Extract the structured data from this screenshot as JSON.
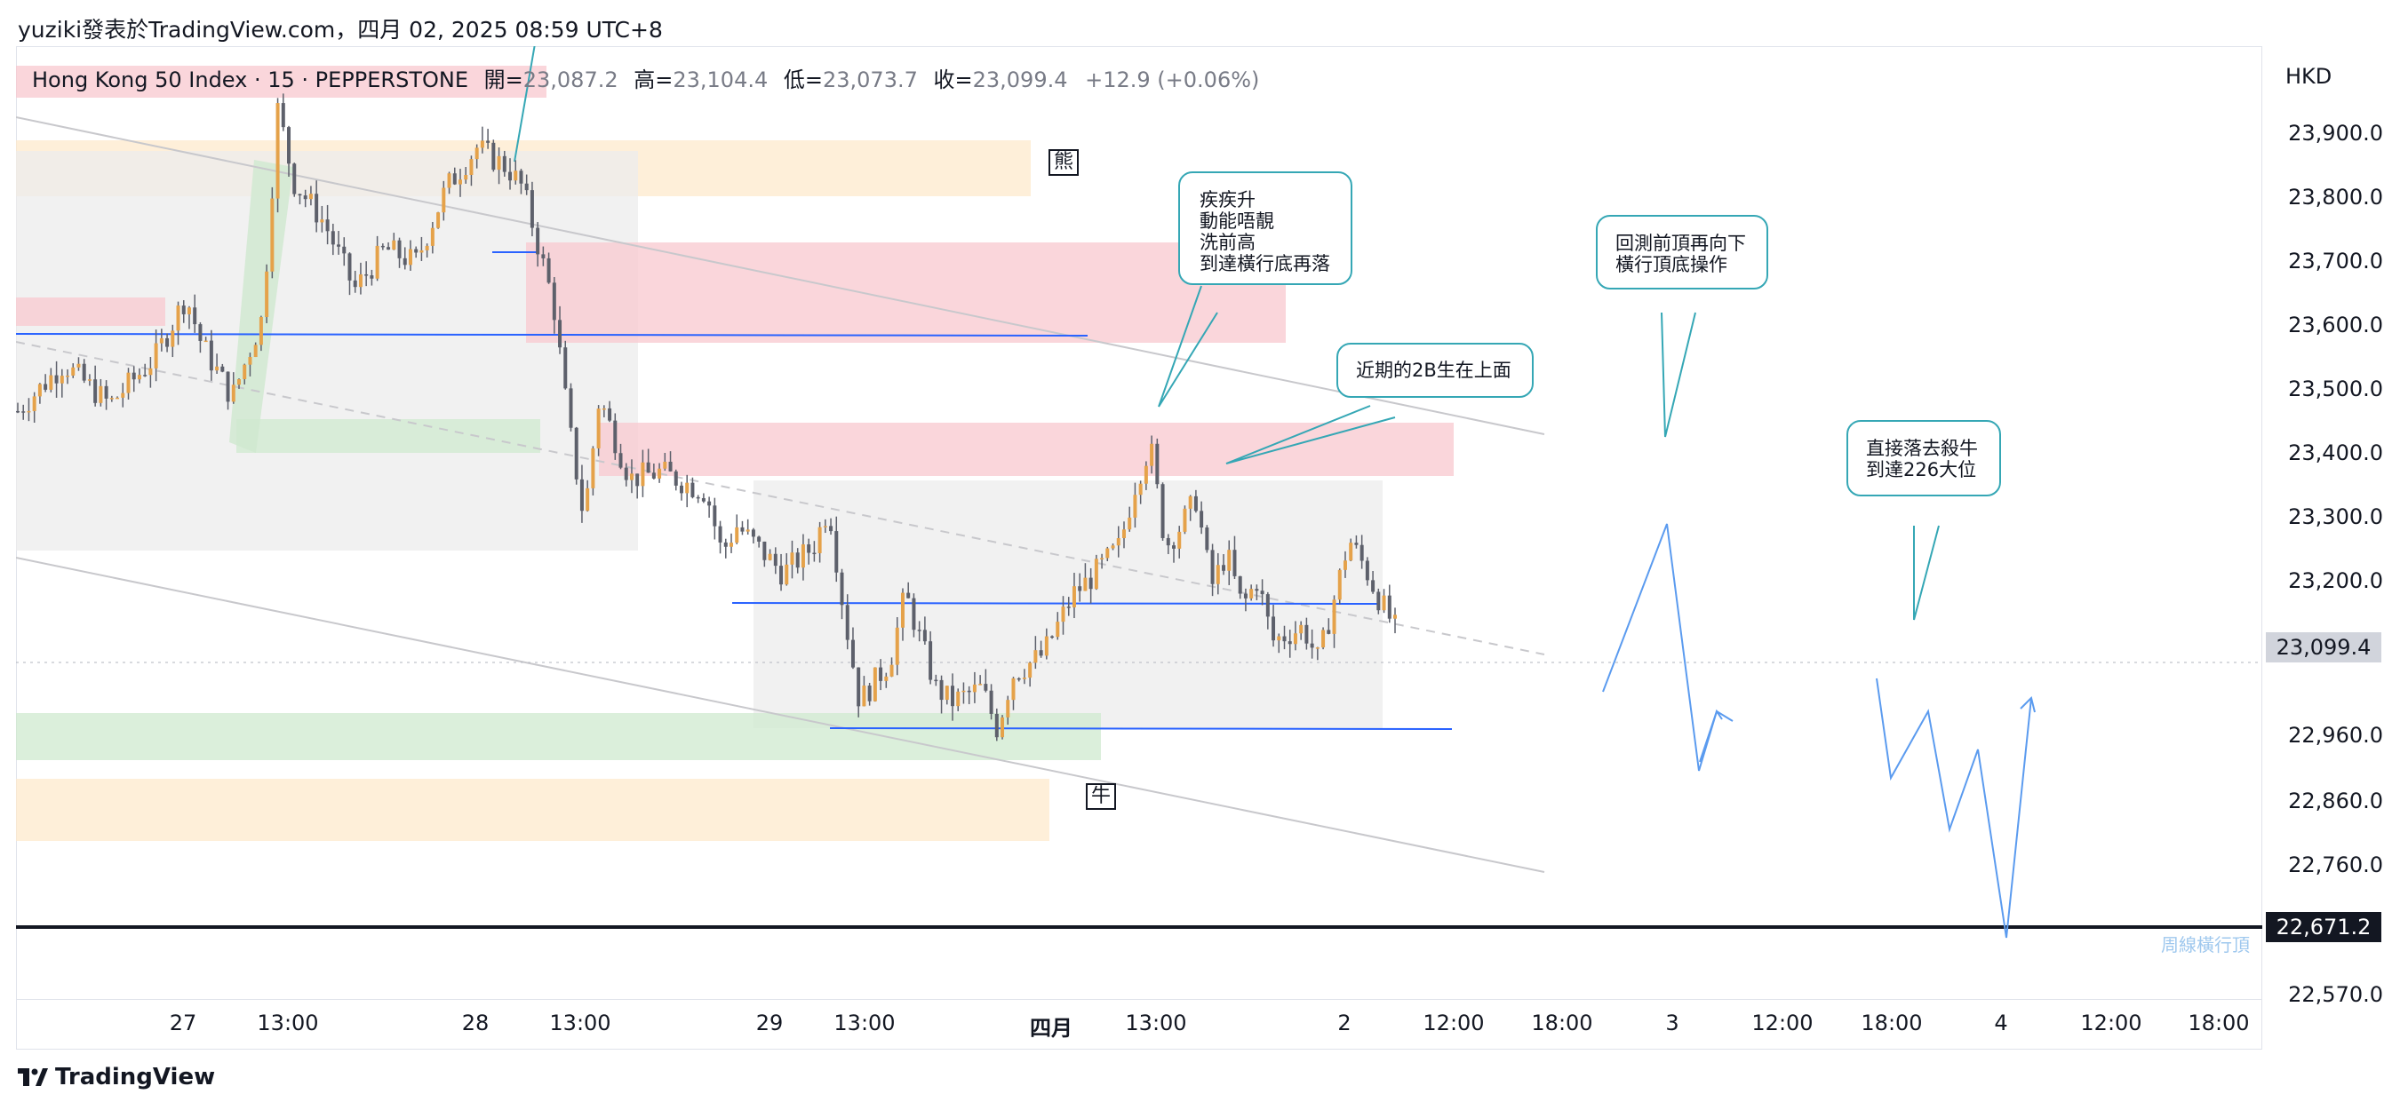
{
  "header": {
    "text": "yuziki發表於TradingView.com，四月 02, 2025 08:59 UTC+8"
  },
  "legend": {
    "symbol": "Hong Kong 50 Index · 15 · PEPPERSTONE",
    "open_label": "開=",
    "open": "23,087.2",
    "high_label": "高=",
    "high": "23,104.4",
    "low_label": "低=",
    "low": "23,073.7",
    "close_label": "收=",
    "close": "23,099.4",
    "change": "+12.9 (+0.06%)"
  },
  "price_axis": {
    "currency": "HKD",
    "ticks": [
      "23,900.0",
      "23,800.0",
      "23,700.0",
      "23,600.0",
      "23,500.0",
      "23,400.0",
      "23,300.0",
      "23,200.0",
      "23,099.4",
      "22,960.0",
      "22,860.0",
      "22,760.0",
      "22,671.2",
      "22,570.0"
    ],
    "current_price": "23,099.4",
    "weekly_level": "22,671.2"
  },
  "time_axis": {
    "ticks": [
      "27",
      "13:00",
      "28",
      "13:00",
      "29",
      "13:00",
      "四月",
      "13:00",
      "2",
      "12:00",
      "18:00",
      "3",
      "12:00",
      "18:00",
      "4",
      "12:00",
      "18:00"
    ]
  },
  "annotations": {
    "bear": "熊",
    "bull": "牛",
    "note1": "疾疾升\n動能唔靚\n洗前高\n到達橫行底再落",
    "note2": "近期的2B生在上面",
    "note3": "回測前頂再向下\n橫行頂底操作",
    "note4": "直接落去殺牛\n到達226大位",
    "weekly_label": "周線橫行頂"
  },
  "colors": {
    "bull_candle": "#e5a24a",
    "bear_candle": "#5d606b",
    "trend_blue": "#2962ff",
    "callout_border": "#35a7b5",
    "red_zone": "#f8c8cf",
    "green_zone": "#cfe9cf",
    "orange_zone": "#fde9cc",
    "grey_zone": "#ececec"
  },
  "chart_data": {
    "type": "candlestick",
    "symbol": "Hong Kong 50 Index",
    "interval": "15",
    "ylim": [
      22550,
      23960
    ],
    "close_path": [
      [
        0,
        23420
      ],
      [
        0.03,
        23490
      ],
      [
        0.06,
        23430
      ],
      [
        0.09,
        23500
      ],
      [
        0.11,
        23590
      ],
      [
        0.12,
        23520
      ],
      [
        0.14,
        23440
      ],
      [
        0.16,
        23560
      ],
      [
        0.17,
        23870
      ],
      [
        0.18,
        23760
      ],
      [
        0.2,
        23700
      ],
      [
        0.22,
        23600
      ],
      [
        0.24,
        23660
      ],
      [
        0.26,
        23640
      ],
      [
        0.28,
        23750
      ],
      [
        0.3,
        23810
      ],
      [
        0.32,
        23780
      ],
      [
        0.33,
        23750
      ],
      [
        0.35,
        23580
      ],
      [
        0.36,
        23400
      ],
      [
        0.37,
        23260
      ],
      [
        0.38,
        23440
      ],
      [
        0.39,
        23380
      ],
      [
        0.4,
        23320
      ],
      [
        0.42,
        23330
      ],
      [
        0.45,
        23300
      ],
      [
        0.46,
        23210
      ],
      [
        0.47,
        23250
      ],
      [
        0.5,
        23180
      ],
      [
        0.52,
        23220
      ],
      [
        0.53,
        23280
      ],
      [
        0.54,
        23120
      ],
      [
        0.55,
        22990
      ],
      [
        0.57,
        23050
      ],
      [
        0.58,
        23150
      ],
      [
        0.6,
        23010
      ],
      [
        0.61,
        22990
      ],
      [
        0.63,
        23010
      ],
      [
        0.64,
        22950
      ],
      [
        0.65,
        23030
      ],
      [
        0.67,
        23060
      ],
      [
        0.69,
        23150
      ],
      [
        0.7,
        23170
      ],
      [
        0.72,
        23220
      ],
      [
        0.73,
        23310
      ],
      [
        0.74,
        23370
      ],
      [
        0.75,
        23220
      ],
      [
        0.76,
        23250
      ],
      [
        0.77,
        23290
      ],
      [
        0.78,
        23160
      ],
      [
        0.79,
        23210
      ],
      [
        0.8,
        23130
      ],
      [
        0.81,
        23170
      ],
      [
        0.82,
        23080
      ],
      [
        0.84,
        23100
      ],
      [
        0.85,
        23050
      ],
      [
        0.86,
        23140
      ],
      [
        0.87,
        23230
      ],
      [
        0.88,
        23190
      ],
      [
        0.89,
        23140
      ],
      [
        0.9,
        23099
      ]
    ]
  }
}
